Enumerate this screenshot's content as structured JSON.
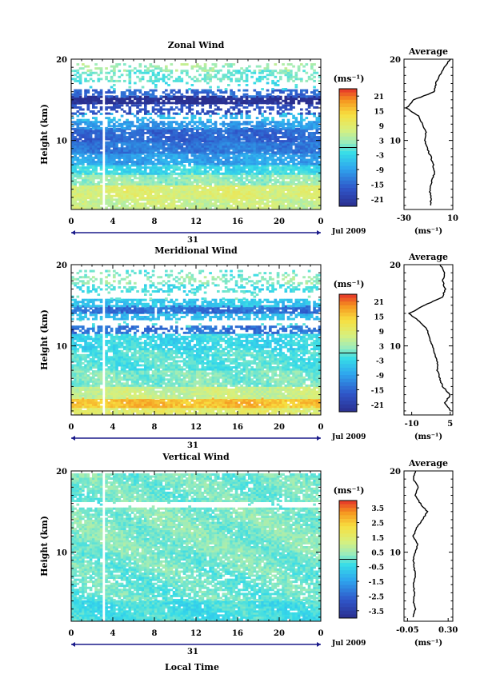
{
  "chart_data": [
    {
      "type": "heatmap",
      "title": "Zonal Wind",
      "ylabel": "Height (km)",
      "xlabel": "",
      "x_ticks": [
        "0",
        "4",
        "8",
        "12",
        "16",
        "20",
        "0"
      ],
      "xlim": [
        0,
        24
      ],
      "y_ticks": [
        "10",
        "20"
      ],
      "ylim": [
        1.5,
        20
      ],
      "date_day": "31",
      "date_label": "Jul 2009",
      "colorbar": {
        "unit": "(ms⁻¹)",
        "ticks": [
          "21",
          "15",
          "9",
          "3",
          "-3",
          "-9",
          "-15",
          "-21"
        ],
        "range": [
          -24,
          24
        ]
      },
      "avg_profile": {
        "title": "Average",
        "unit": "(ms⁻¹)",
        "x_ticks": [
          "-30",
          "10"
        ],
        "xlim": [
          -30,
          10
        ],
        "points": [
          [
            -8,
            2
          ],
          [
            -8,
            3
          ],
          [
            -9,
            4
          ],
          [
            -7,
            5
          ],
          [
            -5,
            6
          ],
          [
            -6,
            7
          ],
          [
            -8,
            8
          ],
          [
            -11,
            9
          ],
          [
            -13,
            10
          ],
          [
            -12,
            11
          ],
          [
            -15,
            12
          ],
          [
            -18,
            13
          ],
          [
            -28,
            14
          ],
          [
            -22,
            15
          ],
          [
            -5,
            16
          ],
          [
            -4,
            17
          ],
          [
            -1,
            18
          ],
          [
            3,
            19
          ],
          [
            8,
            20
          ]
        ]
      },
      "bands": [
        {
          "y0": 1.6,
          "y1": 2.8,
          "value": 6,
          "fill": 0.9
        },
        {
          "y0": 2.8,
          "y1": 4.5,
          "value": 8,
          "fill": 0.95
        },
        {
          "y0": 4.5,
          "y1": 5.8,
          "value": 2,
          "fill": 0.9
        },
        {
          "y0": 5.8,
          "y1": 7.0,
          "value": -3,
          "fill": 0.85
        },
        {
          "y0": 7.0,
          "y1": 8.4,
          "value": -9,
          "fill": 0.9
        },
        {
          "y0": 8.4,
          "y1": 9.8,
          "value": -13,
          "fill": 0.95
        },
        {
          "y0": 9.8,
          "y1": 11.4,
          "value": -15,
          "fill": 0.9
        },
        {
          "y0": 11.4,
          "y1": 12.4,
          "value": -10,
          "fill": 0.75
        },
        {
          "y0": 12.4,
          "y1": 13.2,
          "value": -6,
          "fill": 0.3
        },
        {
          "y0": 13.2,
          "y1": 14.5,
          "value": -18,
          "fill": 0.45
        },
        {
          "y0": 14.5,
          "y1": 15.3,
          "value": -24,
          "fill": 0.85
        },
        {
          "y0": 15.3,
          "y1": 16.2,
          "value": -15,
          "fill": 0.5
        },
        {
          "y0": 16.2,
          "y1": 17.2,
          "value": -2,
          "fill": 0.1
        },
        {
          "y0": 17.2,
          "y1": 18.5,
          "value": 0,
          "fill": 0.45
        },
        {
          "y0": 18.5,
          "y1": 19.4,
          "value": 3,
          "fill": 0.3
        }
      ]
    },
    {
      "type": "heatmap",
      "title": "Meridional Wind",
      "ylabel": "Height (km)",
      "xlabel": "",
      "x_ticks": [
        "0",
        "4",
        "8",
        "12",
        "16",
        "20",
        "0"
      ],
      "xlim": [
        0,
        24
      ],
      "y_ticks": [
        "10",
        "20"
      ],
      "ylim": [
        1.5,
        20
      ],
      "date_day": "31",
      "date_label": "Jul 2009",
      "colorbar": {
        "unit": "(ms⁻¹)",
        "ticks": [
          "21",
          "15",
          "9",
          "3",
          "-3",
          "-9",
          "-15",
          "-21"
        ],
        "range": [
          -24,
          24
        ]
      },
      "avg_profile": {
        "title": "Average",
        "unit": "(ms⁻¹)",
        "x_ticks": [
          "-10",
          "5"
        ],
        "xlim": [
          -13,
          6
        ],
        "points": [
          [
            5,
            2
          ],
          [
            3,
            3
          ],
          [
            5,
            4
          ],
          [
            2,
            5
          ],
          [
            1,
            6
          ],
          [
            0,
            7
          ],
          [
            0,
            8
          ],
          [
            -1,
            9
          ],
          [
            -2,
            10
          ],
          [
            -3,
            11
          ],
          [
            -4,
            12
          ],
          [
            -7,
            13
          ],
          [
            -11,
            14
          ],
          [
            -5,
            15
          ],
          [
            2,
            16
          ],
          [
            3,
            17
          ],
          [
            2,
            18
          ],
          [
            3,
            19
          ],
          [
            1,
            20
          ]
        ]
      },
      "bands": [
        {
          "y0": 1.6,
          "y1": 2.4,
          "value": 9,
          "fill": 0.9
        },
        {
          "y0": 2.4,
          "y1": 3.5,
          "value": 16,
          "fill": 0.95
        },
        {
          "y0": 3.5,
          "y1": 5.0,
          "value": 6,
          "fill": 0.95
        },
        {
          "y0": 5.0,
          "y1": 7.0,
          "value": 1,
          "fill": 0.9
        },
        {
          "y0": 7.0,
          "y1": 9.5,
          "value": -1,
          "fill": 0.85
        },
        {
          "y0": 9.5,
          "y1": 11.5,
          "value": -3,
          "fill": 0.8
        },
        {
          "y0": 11.5,
          "y1": 12.3,
          "value": -14,
          "fill": 0.55
        },
        {
          "y0": 12.3,
          "y1": 13.2,
          "value": -2,
          "fill": 0.05
        },
        {
          "y0": 13.2,
          "y1": 14.0,
          "value": -6,
          "fill": 0.6
        },
        {
          "y0": 14.0,
          "y1": 14.8,
          "value": -14,
          "fill": 0.85
        },
        {
          "y0": 14.8,
          "y1": 15.7,
          "value": -5,
          "fill": 0.7
        },
        {
          "y0": 15.7,
          "y1": 16.6,
          "value": 0,
          "fill": 0.05
        },
        {
          "y0": 16.6,
          "y1": 17.6,
          "value": -2,
          "fill": 0.4
        },
        {
          "y0": 17.6,
          "y1": 18.6,
          "value": 2,
          "fill": 0.35
        },
        {
          "y0": 18.6,
          "y1": 19.2,
          "value": 0,
          "fill": 0.2
        }
      ]
    },
    {
      "type": "heatmap",
      "title": "Vertical Wind",
      "ylabel": "Height (km)",
      "xlabel": "Local Time",
      "x_ticks": [
        "0",
        "4",
        "8",
        "12",
        "16",
        "20",
        "0"
      ],
      "xlim": [
        0,
        24
      ],
      "y_ticks": [
        "10",
        "20"
      ],
      "ylim": [
        1.5,
        20
      ],
      "date_day": "31",
      "date_label": "Jul 2009",
      "colorbar": {
        "unit": "(ms⁻¹)",
        "ticks": [
          "3.5",
          "2.5",
          "1.5",
          "0.5",
          "-0.5",
          "-1.5",
          "-2.5",
          "-3.5"
        ],
        "range": [
          -4,
          4
        ]
      },
      "avg_profile": {
        "title": "Average",
        "unit": "(ms⁻¹)",
        "x_ticks": [
          "-0.05",
          "0.30"
        ],
        "xlim": [
          -0.08,
          0.34
        ],
        "points": [
          [
            0.0,
            2
          ],
          [
            0.02,
            3
          ],
          [
            0.0,
            4
          ],
          [
            0.01,
            5
          ],
          [
            0.0,
            6
          ],
          [
            0.02,
            7
          ],
          [
            0.01,
            8
          ],
          [
            0.0,
            9
          ],
          [
            0.02,
            10
          ],
          [
            0.04,
            11
          ],
          [
            0.0,
            12
          ],
          [
            0.03,
            13
          ],
          [
            0.08,
            14
          ],
          [
            0.12,
            15
          ],
          [
            0.06,
            16
          ],
          [
            0.02,
            17
          ],
          [
            0.04,
            18
          ],
          [
            0.0,
            19
          ],
          [
            0.02,
            20
          ]
        ]
      },
      "bands": [
        {
          "y0": 1.6,
          "y1": 4.0,
          "value": -0.3,
          "fill": 0.95
        },
        {
          "y0": 4.0,
          "y1": 7.5,
          "value": 0.0,
          "fill": 0.8
        },
        {
          "y0": 7.5,
          "y1": 10.0,
          "value": 0.1,
          "fill": 0.9
        },
        {
          "y0": 10.0,
          "y1": 13.5,
          "value": 0.2,
          "fill": 0.95
        },
        {
          "y0": 13.5,
          "y1": 15.5,
          "value": 0.2,
          "fill": 0.9
        },
        {
          "y0": 15.5,
          "y1": 16.2,
          "value": 0.0,
          "fill": 0.05
        },
        {
          "y0": 16.2,
          "y1": 19.5,
          "value": 0.1,
          "fill": 0.9
        }
      ]
    }
  ]
}
